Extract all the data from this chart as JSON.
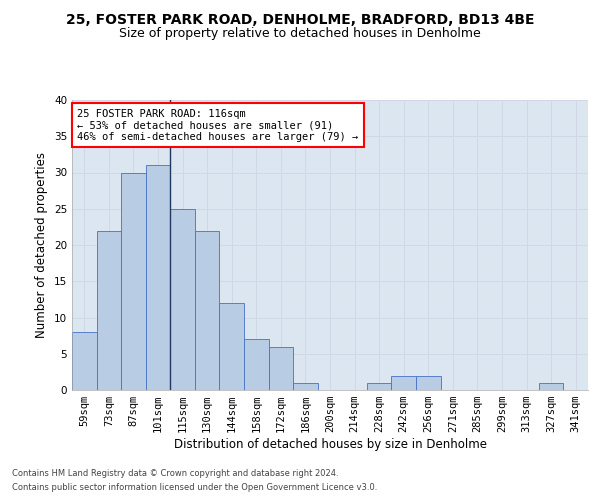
{
  "title1": "25, FOSTER PARK ROAD, DENHOLME, BRADFORD, BD13 4BE",
  "title2": "Size of property relative to detached houses in Denholme",
  "xlabel": "Distribution of detached houses by size in Denholme",
  "ylabel": "Number of detached properties",
  "footer1": "Contains HM Land Registry data © Crown copyright and database right 2024.",
  "footer2": "Contains public sector information licensed under the Open Government Licence v3.0.",
  "annotation_line1": "25 FOSTER PARK ROAD: 116sqm",
  "annotation_line2": "← 53% of detached houses are smaller (91)",
  "annotation_line3": "46% of semi-detached houses are larger (79) →",
  "bar_labels": [
    "59sqm",
    "73sqm",
    "87sqm",
    "101sqm",
    "115sqm",
    "130sqm",
    "144sqm",
    "158sqm",
    "172sqm",
    "186sqm",
    "200sqm",
    "214sqm",
    "228sqm",
    "242sqm",
    "256sqm",
    "271sqm",
    "285sqm",
    "299sqm",
    "313sqm",
    "327sqm",
    "341sqm"
  ],
  "bar_values": [
    8,
    22,
    30,
    31,
    25,
    22,
    12,
    7,
    6,
    1,
    0,
    0,
    1,
    2,
    2,
    0,
    0,
    0,
    0,
    1,
    0
  ],
  "bar_color": "#b8cce4",
  "bar_edge_color": "#4472c4",
  "marker_bar_index": 4,
  "marker_color": "#1f3864",
  "ylim": [
    0,
    40
  ],
  "yticks": [
    0,
    5,
    10,
    15,
    20,
    25,
    30,
    35,
    40
  ],
  "grid_color": "#d0d8e8",
  "bg_color": "#dce6f1",
  "title_fontsize": 10,
  "subtitle_fontsize": 9,
  "tick_fontsize": 7.5,
  "ylabel_fontsize": 8.5,
  "xlabel_fontsize": 8.5,
  "footer_fontsize": 6,
  "annotation_fontsize": 7.5
}
